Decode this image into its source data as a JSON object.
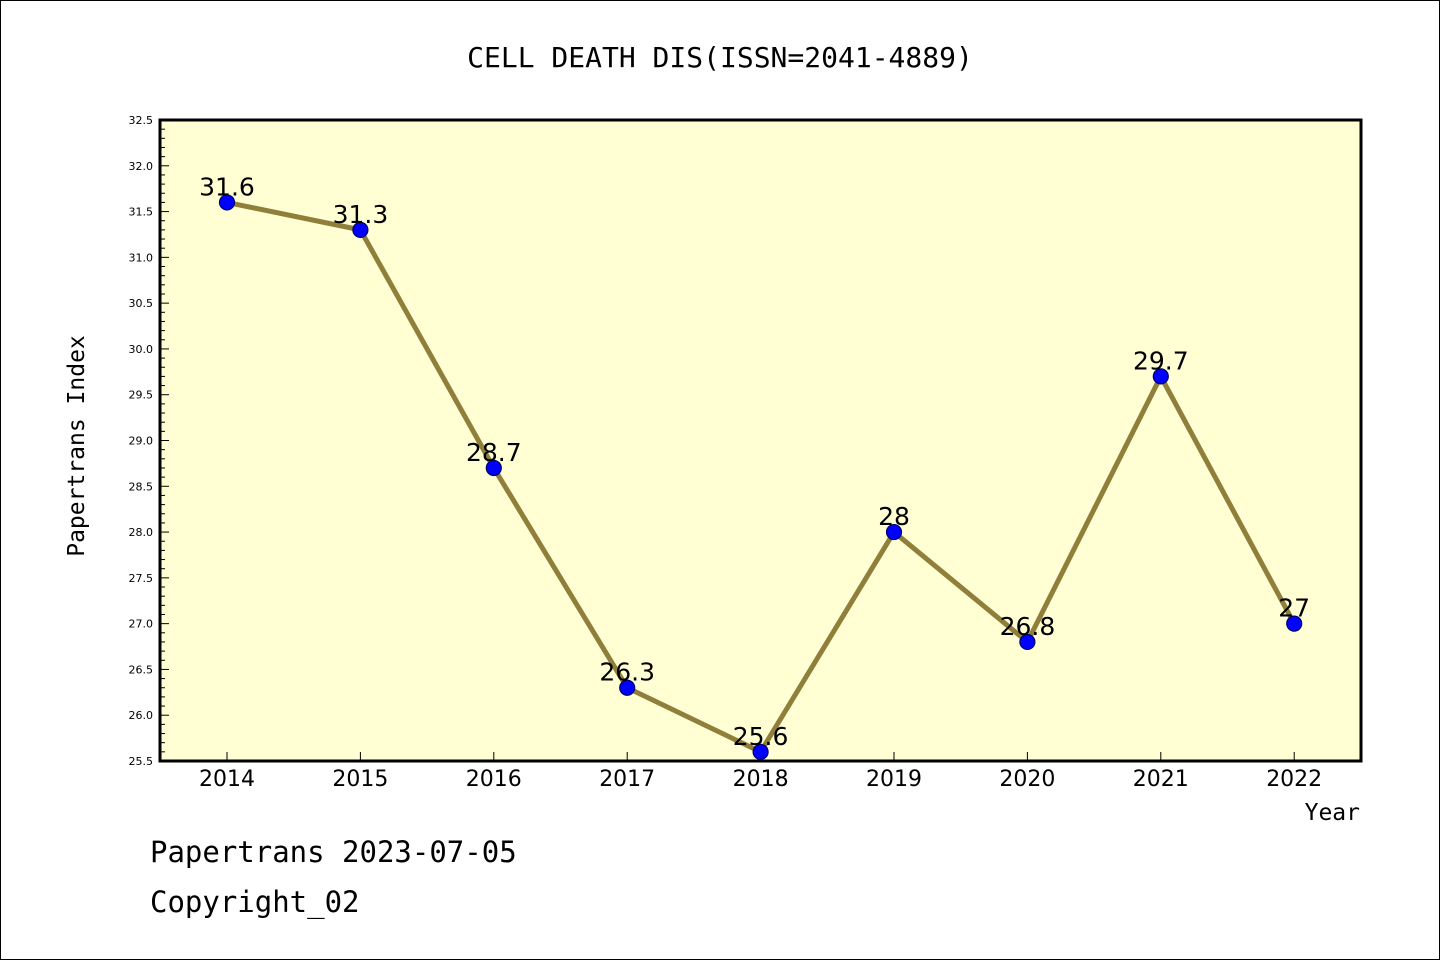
{
  "colors": {
    "plot_background": "#ffffd3",
    "line": "#8f7f3a",
    "marker": "#0000ff",
    "marker_edge": "#00006a"
  },
  "chart_data": {
    "type": "line",
    "title": "CELL DEATH DIS(ISSN=2041-4889)",
    "xlabel": "Year",
    "ylabel": "Papertrans Index",
    "categories": [
      "2014",
      "2015",
      "2016",
      "2017",
      "2018",
      "2019",
      "2020",
      "2021",
      "2022"
    ],
    "values": [
      31.6,
      31.3,
      28.7,
      26.3,
      25.6,
      28,
      26.8,
      29.7,
      27
    ],
    "data_labels": [
      "31.6",
      "31.3",
      "28.7",
      "26.3",
      "25.6",
      "28",
      "26.8",
      "29.7",
      "27"
    ],
    "ylim": [
      25.5,
      32.5
    ],
    "yticks": [
      "25.5",
      "26.0",
      "26.5",
      "27.0",
      "27.5",
      "28.0",
      "28.5",
      "29.0",
      "29.5",
      "30.0",
      "30.5",
      "31.0",
      "31.5",
      "32.0",
      "32.5"
    ],
    "grid": false,
    "legend": "none"
  },
  "footer": {
    "line1": "Papertrans 2023-07-05",
    "line2": "Copyright_02"
  }
}
